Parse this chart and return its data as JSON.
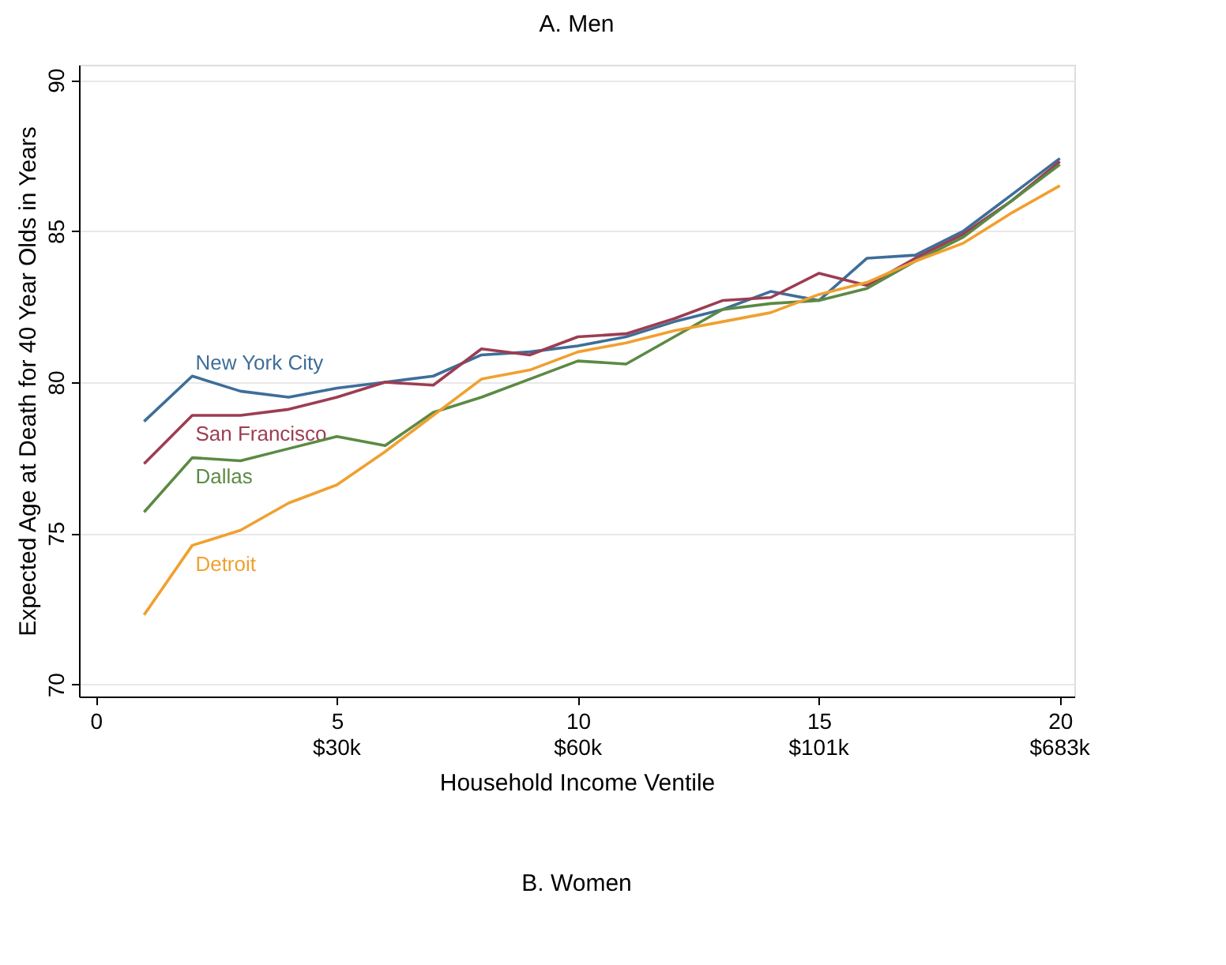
{
  "chart_data": {
    "type": "line",
    "title": "A. Men",
    "xlabel": "Household Income Ventile",
    "ylabel": "Expected Age at Death for 40 Year Olds in Years",
    "x": [
      1,
      2,
      3,
      4,
      5,
      6,
      7,
      8,
      9,
      10,
      11,
      12,
      13,
      14,
      15,
      16,
      17,
      18,
      19,
      20
    ],
    "series": [
      {
        "name": "New York City",
        "color": "#3e6e99",
        "values": [
          78.7,
          80.2,
          79.7,
          79.5,
          79.8,
          80.0,
          80.2,
          80.9,
          81.0,
          81.2,
          81.5,
          82.0,
          82.4,
          83.0,
          82.7,
          84.1,
          84.2,
          85.0,
          86.2,
          87.4
        ]
      },
      {
        "name": "San Francisco",
        "color": "#9c3d52",
        "values": [
          77.3,
          78.9,
          78.9,
          79.1,
          79.5,
          80.0,
          79.9,
          81.1,
          80.9,
          81.5,
          81.6,
          82.1,
          82.7,
          82.8,
          83.6,
          83.2,
          84.1,
          84.9,
          86.0,
          87.3
        ]
      },
      {
        "name": "Dallas",
        "color": "#5b8a43",
        "values": [
          75.7,
          77.5,
          77.4,
          77.8,
          78.2,
          77.9,
          79.0,
          79.5,
          80.1,
          80.7,
          80.6,
          81.5,
          82.4,
          82.6,
          82.7,
          83.1,
          84.0,
          84.8,
          86.0,
          87.2
        ]
      },
      {
        "name": "Detroit",
        "color": "#f0a030",
        "values": [
          72.3,
          74.6,
          75.1,
          76.0,
          76.6,
          77.7,
          78.9,
          80.1,
          80.4,
          81.0,
          81.3,
          81.7,
          82.0,
          82.3,
          82.9,
          83.3,
          84.0,
          84.6,
          85.6,
          86.5
        ]
      }
    ],
    "xlim": [
      -0.35,
      20.3
    ],
    "ylim": [
      69.6,
      90.5
    ],
    "xticks": [
      0,
      5,
      10,
      15,
      20
    ],
    "yticks": [
      70,
      75,
      80,
      85,
      90
    ],
    "grid": "y",
    "legend": false,
    "marker": "none",
    "line_style": "solid",
    "annotations": [
      "$30k",
      "$60k",
      "$101k",
      "$683k",
      "B. Women"
    ]
  }
}
